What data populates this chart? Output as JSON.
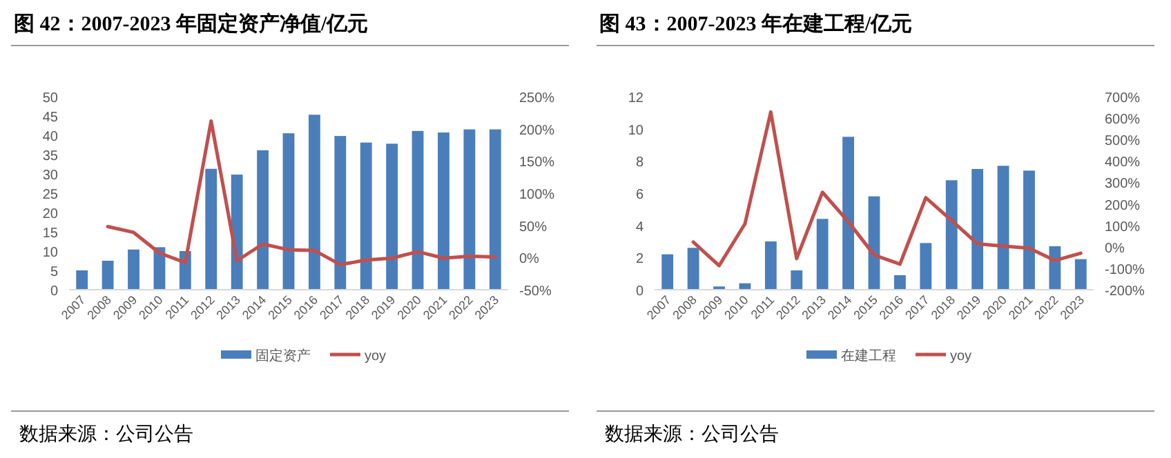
{
  "chart_data": [
    {
      "type": "bar",
      "title": "图 42：2007-2023 年固定资产净值/亿元",
      "categories": [
        "2007",
        "2008",
        "2009",
        "2010",
        "2011",
        "2012",
        "2013",
        "2014",
        "2015",
        "2016",
        "2017",
        "2018",
        "2019",
        "2020",
        "2021",
        "2022",
        "2023"
      ],
      "series": [
        {
          "name": "固定资产",
          "color": "#4a7ebb",
          "values": [
            5,
            7.5,
            10.4,
            11,
            10,
            31.3,
            29.8,
            36.1,
            40.5,
            45.3,
            39.8,
            38.1,
            37.8,
            41.1,
            40.7,
            41.5,
            41.5
          ]
        },
        {
          "name": "yoy",
          "type": "line",
          "axis": "y2",
          "color": "#c0504d",
          "values": [
            null,
            48,
            39,
            7,
            -8,
            212,
            -5,
            21,
            12,
            11,
            -11,
            -4,
            -1,
            9,
            -1,
            2,
            1
          ]
        }
      ],
      "ylim": [
        0,
        50
      ],
      "yticks": [
        0,
        5,
        10,
        15,
        20,
        25,
        30,
        35,
        40,
        45,
        50
      ],
      "y2lim": [
        -50,
        250
      ],
      "y2ticks": [
        {
          "value": -50,
          "label": "-50%"
        },
        {
          "value": 0,
          "label": "0%"
        },
        {
          "value": 50,
          "label": "50%"
        },
        {
          "value": 100,
          "label": "100%"
        },
        {
          "value": 150,
          "label": "150%"
        },
        {
          "value": 200,
          "label": "200%"
        },
        {
          "value": 250,
          "label": "250%"
        }
      ],
      "grid": false,
      "legend": "bottom",
      "annotations": [
        "数据来源：公司公告"
      ]
    },
    {
      "type": "bar",
      "title": "图 43：2007-2023 年在建工程/亿元",
      "categories": [
        "2007",
        "2008",
        "2009",
        "2010",
        "2011",
        "2012",
        "2013",
        "2014",
        "2015",
        "2016",
        "2017",
        "2018",
        "2019",
        "2020",
        "2021",
        "2022",
        "2023"
      ],
      "series": [
        {
          "name": "在建工程",
          "color": "#4a7ebb",
          "values": [
            2.2,
            2.6,
            0.2,
            0.4,
            3.0,
            1.2,
            4.4,
            9.5,
            5.8,
            0.9,
            2.9,
            6.8,
            7.5,
            7.7,
            7.4,
            2.7,
            1.9
          ]
        },
        {
          "name": "yoy",
          "type": "line",
          "axis": "y2",
          "color": "#c0504d",
          "values": [
            null,
            22,
            -88,
            107,
            628,
            -55,
            254,
            117,
            -38,
            -81,
            229,
            123,
            14,
            3,
            -6,
            -64,
            -30
          ]
        }
      ],
      "ylim": [
        0,
        12
      ],
      "yticks": [
        0,
        2,
        4,
        6,
        8,
        10,
        12
      ],
      "y2lim": [
        -200,
        700
      ],
      "y2ticks": [
        {
          "value": -200,
          "label": "-200%"
        },
        {
          "value": -100,
          "label": "-100%"
        },
        {
          "value": 0,
          "label": "0%"
        },
        {
          "value": 100,
          "label": "100%"
        },
        {
          "value": 200,
          "label": "200%"
        },
        {
          "value": 300,
          "label": "300%"
        },
        {
          "value": 400,
          "label": "400%"
        },
        {
          "value": 500,
          "label": "500%"
        },
        {
          "value": 600,
          "label": "600%"
        },
        {
          "value": 700,
          "label": "700%"
        }
      ],
      "grid": false,
      "legend": "bottom",
      "annotations": [
        "数据来源：公司公告"
      ]
    }
  ]
}
